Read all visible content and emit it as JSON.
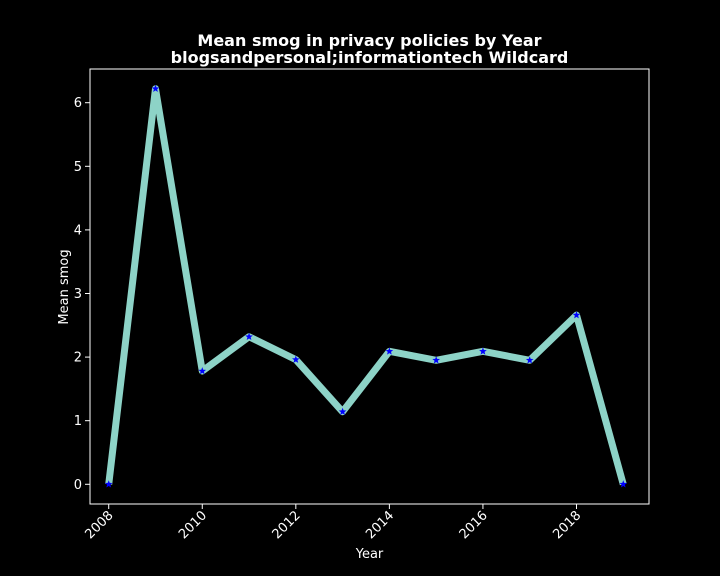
{
  "chart_data": {
    "type": "line",
    "title": "Mean smog in privacy policies by Year",
    "subtitle": "blogsandpersonal;informationtech Wildcard",
    "xlabel": "Year",
    "ylabel": "Mean smog",
    "x": [
      2008,
      2009,
      2010,
      2011,
      2012,
      2013,
      2014,
      2015,
      2016,
      2017,
      2018,
      2019
    ],
    "series": [
      {
        "values": [
          0,
          6.22,
          1.78,
          2.32,
          1.96,
          1.14,
          2.09,
          1.95,
          2.09,
          1.95,
          2.66,
          0
        ]
      }
    ],
    "xlim": [
      2007.6,
      2019.55
    ],
    "ylim": [
      -0.31,
      6.53
    ],
    "xticks": [
      2008,
      2010,
      2012,
      2014,
      2016,
      2018
    ],
    "yticks": [
      0,
      1,
      2,
      3,
      4,
      5,
      6
    ],
    "grid": false,
    "legend": "none",
    "colors": {
      "background": "#000000",
      "line": "#8dd3c7",
      "marker": "#0000ff",
      "axes": "#ffffff",
      "text": "#ffffff"
    }
  }
}
